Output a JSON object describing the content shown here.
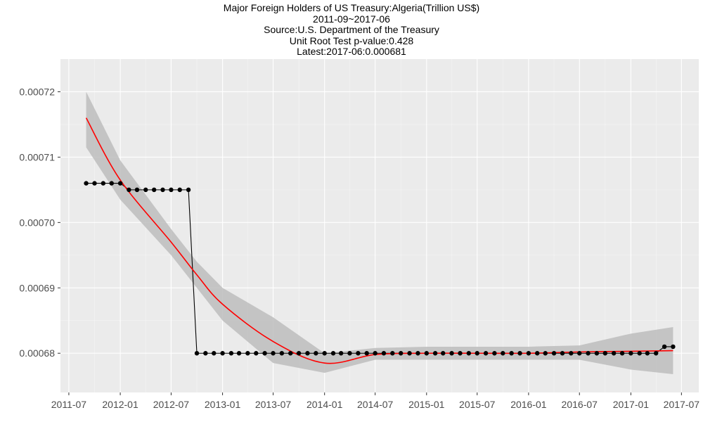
{
  "chart_data": {
    "type": "line",
    "title_lines": [
      "Major Foreign Holders of US Treasury:Algeria(Trillion US$)",
      "2011-09~2017-06",
      "Source:U.S. Department of the Treasury",
      "Unit Root Test p-value:0.428",
      "Latest:2017-06:0.000681"
    ],
    "xlabel": "",
    "ylabel": "",
    "x_ticks": [
      "2011-07",
      "2012-01",
      "2012-07",
      "2013-01",
      "2013-07",
      "2014-01",
      "2014-07",
      "2015-01",
      "2015-07",
      "2016-01",
      "2016-07",
      "2017-01",
      "2017-07"
    ],
    "y_ticks": [
      0.00068,
      0.00069,
      0.0007,
      0.00071,
      0.00072
    ],
    "y_tick_labels": [
      "0.00068",
      "0.00069",
      "0.00070",
      "0.00071",
      "0.00072"
    ],
    "xlim": [
      "2011-06-01",
      "2017-09-01"
    ],
    "ylim": [
      0.000674,
      0.000725
    ],
    "grid": true,
    "series": [
      {
        "values": [
          [
            "2011-09",
            0.000706
          ],
          [
            "2011-10",
            0.000706
          ],
          [
            "2011-11",
            0.000706
          ],
          [
            "2011-12",
            0.000706
          ],
          [
            "2012-01",
            0.000706
          ],
          [
            "2012-02",
            0.000705
          ],
          [
            "2012-03",
            0.000705
          ],
          [
            "2012-04",
            0.000705
          ],
          [
            "2012-05",
            0.000705
          ],
          [
            "2012-06",
            0.000705
          ],
          [
            "2012-07",
            0.000705
          ],
          [
            "2012-08",
            0.000705
          ],
          [
            "2012-09",
            0.000705
          ],
          [
            "2012-10",
            0.00068
          ],
          [
            "2012-11",
            0.00068
          ],
          [
            "2012-12",
            0.00068
          ],
          [
            "2013-01",
            0.00068
          ],
          [
            "2013-02",
            0.00068
          ],
          [
            "2013-03",
            0.00068
          ],
          [
            "2013-04",
            0.00068
          ],
          [
            "2013-05",
            0.00068
          ],
          [
            "2013-06",
            0.00068
          ],
          [
            "2013-07",
            0.00068
          ],
          [
            "2013-08",
            0.00068
          ],
          [
            "2013-09",
            0.00068
          ],
          [
            "2013-10",
            0.00068
          ],
          [
            "2013-11",
            0.00068
          ],
          [
            "2013-12",
            0.00068
          ],
          [
            "2014-01",
            0.00068
          ],
          [
            "2014-02",
            0.00068
          ],
          [
            "2014-03",
            0.00068
          ],
          [
            "2014-04",
            0.00068
          ],
          [
            "2014-05",
            0.00068
          ],
          [
            "2014-06",
            0.00068
          ],
          [
            "2014-07",
            0.00068
          ],
          [
            "2014-08",
            0.00068
          ],
          [
            "2014-09",
            0.00068
          ],
          [
            "2014-10",
            0.00068
          ],
          [
            "2014-11",
            0.00068
          ],
          [
            "2014-12",
            0.00068
          ],
          [
            "2015-01",
            0.00068
          ],
          [
            "2015-02",
            0.00068
          ],
          [
            "2015-03",
            0.00068
          ],
          [
            "2015-04",
            0.00068
          ],
          [
            "2015-05",
            0.00068
          ],
          [
            "2015-06",
            0.00068
          ],
          [
            "2015-07",
            0.00068
          ],
          [
            "2015-08",
            0.00068
          ],
          [
            "2015-09",
            0.00068
          ],
          [
            "2015-10",
            0.00068
          ],
          [
            "2015-11",
            0.00068
          ],
          [
            "2015-12",
            0.00068
          ],
          [
            "2016-01",
            0.00068
          ],
          [
            "2016-02",
            0.00068
          ],
          [
            "2016-03",
            0.00068
          ],
          [
            "2016-04",
            0.00068
          ],
          [
            "2016-05",
            0.00068
          ],
          [
            "2016-06",
            0.00068
          ],
          [
            "2016-07",
            0.00068
          ],
          [
            "2016-08",
            0.00068
          ],
          [
            "2016-09",
            0.00068
          ],
          [
            "2016-10",
            0.00068
          ],
          [
            "2016-11",
            0.00068
          ],
          [
            "2016-12",
            0.00068
          ],
          [
            "2017-01",
            0.00068
          ],
          [
            "2017-02",
            0.00068
          ],
          [
            "2017-03",
            0.00068
          ],
          [
            "2017-04",
            0.00068
          ],
          [
            "2017-05",
            0.000681
          ],
          [
            "2017-06",
            0.000681
          ]
        ],
        "color": "#000000"
      }
    ],
    "smooth": {
      "color": "#ff0000",
      "band_color": "#bdbdbd",
      "points": [
        [
          "2011-09",
          0.000716,
          0.0007115,
          0.00072
        ],
        [
          "2012-01",
          0.0007065,
          0.0007035,
          0.0007095
        ],
        [
          "2012-07",
          0.000697,
          0.000695,
          0.000699
        ],
        [
          "2012-10",
          0.000692,
          0.00069,
          0.000694
        ],
        [
          "2013-01",
          0.0006875,
          0.000685,
          0.00069
        ],
        [
          "2013-07",
          0.0006818,
          0.0006785,
          0.0006855
        ],
        [
          "2014-01",
          0.0006785,
          0.000677,
          0.00068
        ],
        [
          "2014-07",
          0.0006798,
          0.000679,
          0.0006808
        ],
        [
          "2015-01",
          0.00068,
          0.000679,
          0.000681
        ],
        [
          "2015-07",
          0.00068,
          0.000679,
          0.000681
        ],
        [
          "2016-01",
          0.00068,
          0.000679,
          0.000681
        ],
        [
          "2016-07",
          0.0006802,
          0.000679,
          0.0006812
        ],
        [
          "2017-01",
          0.0006803,
          0.0006775,
          0.000683
        ],
        [
          "2017-06",
          0.0006804,
          0.0006768,
          0.000684
        ]
      ]
    },
    "colors": {
      "panel_background": "#ebebeb",
      "grid_major": "#ffffff",
      "tick_text": "#4d4d4d"
    }
  }
}
